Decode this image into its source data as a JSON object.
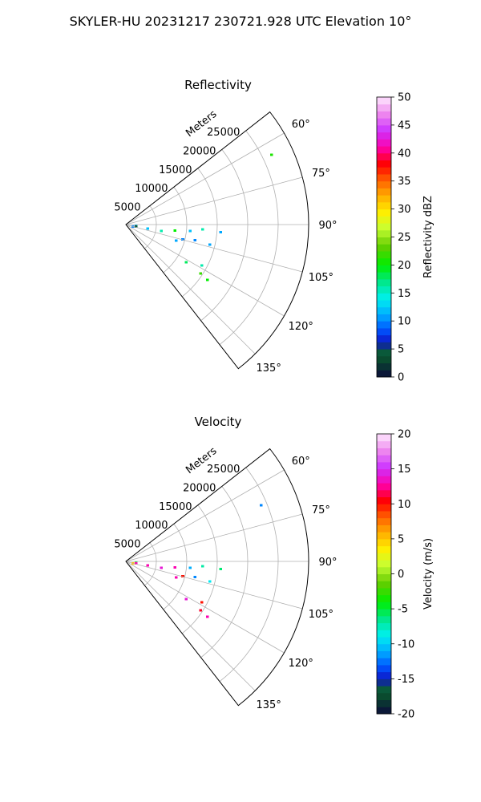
{
  "suptitle": "SKYLER-HU  20231217  230721.928 UTC Elevation 10°",
  "chart_data": [
    {
      "type": "polar-sector",
      "title": "Reflectivity",
      "radial_label": "Meters",
      "range_ticks": [
        "5000",
        "10000",
        "15000",
        "20000",
        "25000"
      ],
      "range_tick_values": [
        5000,
        10000,
        15000,
        20000,
        25000
      ],
      "azimuth_ticks": [
        "60°",
        "75°",
        "90°",
        "105°",
        "120°",
        "135°"
      ],
      "azimuth_tick_values": [
        60,
        75,
        90,
        105,
        120,
        135
      ],
      "azimuth_range": [
        52,
        142
      ],
      "range_max": 30000,
      "grid": true,
      "colorbar": {
        "label": "Reflectivity dBZ",
        "range": [
          0,
          50
        ],
        "ticks": [
          "0",
          "5",
          "10",
          "15",
          "20",
          "25",
          "30",
          "35",
          "40",
          "45",
          "50"
        ],
        "tick_values": [
          0,
          5,
          10,
          15,
          20,
          25,
          30,
          35,
          40,
          45,
          50
        ]
      },
      "echoes": [
        {
          "az": 93,
          "r": 2000,
          "value": 12
        },
        {
          "az": 97,
          "r": 2000,
          "value": 4
        },
        {
          "az": 101,
          "r": 1500,
          "value": 10
        },
        {
          "az": 99,
          "r": 4500,
          "value": 12
        },
        {
          "az": 100,
          "r": 6800,
          "value": 16
        },
        {
          "az": 97,
          "r": 9000,
          "value": 20
        },
        {
          "az": 96,
          "r": 11500,
          "value": 12
        },
        {
          "az": 94,
          "r": 13500,
          "value": 16
        },
        {
          "az": 95,
          "r": 16500,
          "value": 11
        },
        {
          "az": 105,
          "r": 10500,
          "value": 10
        },
        {
          "az": 108,
          "r": 9500,
          "value": 11
        },
        {
          "az": 103,
          "r": 12500,
          "value": 10
        },
        {
          "az": 104,
          "r": 15000,
          "value": 11
        },
        {
          "az": 123,
          "r": 12500,
          "value": 18
        },
        {
          "az": 119,
          "r": 15000,
          "value": 16
        },
        {
          "az": 124,
          "r": 15500,
          "value": 22
        },
        {
          "az": 125,
          "r": 17000,
          "value": 20
        },
        {
          "az": 65,
          "r": 27500,
          "value": 21
        }
      ]
    },
    {
      "type": "polar-sector",
      "title": "Velocity",
      "radial_label": "Meters",
      "range_ticks": [
        "5000",
        "10000",
        "15000",
        "20000",
        "25000"
      ],
      "range_tick_values": [
        5000,
        10000,
        15000,
        20000,
        25000
      ],
      "azimuth_ticks": [
        "60°",
        "75°",
        "90°",
        "105°",
        "120°",
        "135°"
      ],
      "azimuth_tick_values": [
        60,
        75,
        90,
        105,
        120,
        135
      ],
      "azimuth_range": [
        52,
        142
      ],
      "range_max": 30000,
      "grid": true,
      "colorbar": {
        "label": "Velocity (m/s)",
        "range": [
          -20,
          20
        ],
        "ticks": [
          "-20",
          "-15",
          "-10",
          "-5",
          "0",
          "5",
          "10",
          "15",
          "20"
        ],
        "tick_values": [
          -20,
          -15,
          -10,
          -5,
          0,
          5,
          10,
          15,
          20
        ]
      },
      "echoes": [
        {
          "az": 93,
          "r": 2000,
          "value": -5
        },
        {
          "az": 97,
          "r": 2000,
          "value": 13
        },
        {
          "az": 101,
          "r": 1500,
          "value": 5
        },
        {
          "az": 99,
          "r": 4500,
          "value": 13
        },
        {
          "az": 100,
          "r": 6800,
          "value": 14
        },
        {
          "az": 97,
          "r": 9000,
          "value": 13
        },
        {
          "az": 96,
          "r": 11500,
          "value": -11
        },
        {
          "az": 94,
          "r": 13500,
          "value": -7
        },
        {
          "az": 95,
          "r": 16500,
          "value": -6
        },
        {
          "az": 105,
          "r": 10500,
          "value": 10
        },
        {
          "az": 108,
          "r": 9500,
          "value": 13
        },
        {
          "az": 103,
          "r": 12500,
          "value": -12
        },
        {
          "az": 104,
          "r": 15000,
          "value": -9
        },
        {
          "az": 123,
          "r": 12500,
          "value": 14
        },
        {
          "az": 119,
          "r": 15000,
          "value": 10
        },
        {
          "az": 124,
          "r": 15500,
          "value": 11
        },
        {
          "az": 125,
          "r": 17000,
          "value": 13
        },
        {
          "az": 68,
          "r": 25000,
          "value": -12
        }
      ]
    }
  ]
}
